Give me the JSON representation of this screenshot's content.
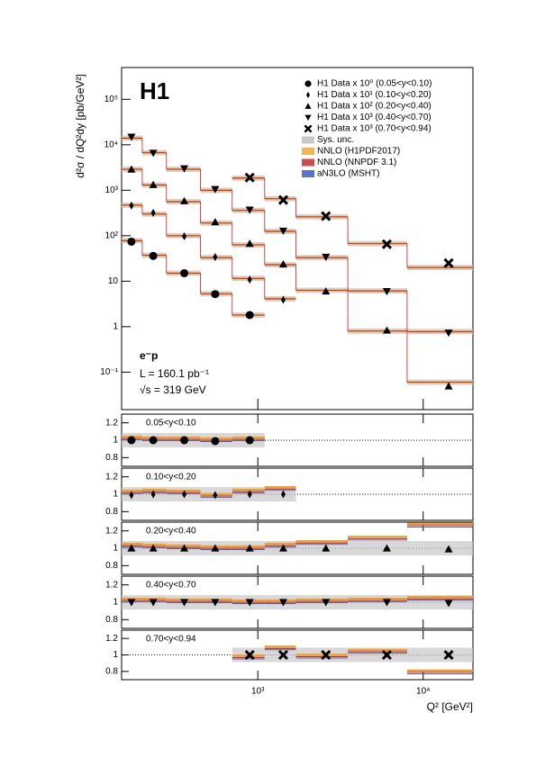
{
  "chart_data": {
    "type": "step",
    "title": "H1",
    "ylabel": "d²σ / dQ²dy [pb/GeV²]",
    "xlabel": "Q² [GeV²]",
    "annotations": [
      "e⁻p",
      "L = 160.1 pb⁻¹",
      "√s = 319 GeV"
    ],
    "log_x": true,
    "log_y": true,
    "xlim": [
      150,
      20000
    ],
    "xticks": [
      {
        "value": 1000,
        "label": "10³"
      },
      {
        "value": 10000,
        "label": "10⁴"
      }
    ],
    "ylim": [
      0.015,
      500000
    ],
    "yticks": [
      {
        "value": 0.1,
        "label": "10⁻¹"
      },
      1,
      10,
      {
        "value": 100,
        "label": "10²"
      },
      {
        "value": 1000,
        "label": "10³"
      },
      {
        "value": 10000,
        "label": "10⁴"
      },
      {
        "value": 100000,
        "label": "10⁵"
      }
    ],
    "ratio_ylim": [
      0.7,
      1.3
    ],
    "ratio_yticks": [
      0.8,
      1,
      1.2
    ],
    "legend": "top-right",
    "legend_extra": [
      {
        "name": "Sys. unc.",
        "color": "#c8c8c8"
      },
      {
        "name": "NNLO (H1PDF2017)",
        "color": "#f0a030"
      },
      {
        "name": "NNLO (NNPDF 3.1)",
        "color": "#c02020"
      },
      {
        "name": "aN3LO (MSHT)",
        "color": "#3050c0"
      }
    ],
    "series": [
      {
        "name": "H1 Data x 10⁰ (0.05<y<0.10)",
        "range_label": "0.05<y<0.10",
        "marker": "circle",
        "color": "#000000",
        "x": [
          172,
          233,
          359,
          552,
          893
        ],
        "values": [
          74,
          36,
          15,
          5.2,
          1.8
        ],
        "bins": [
          150,
          200,
          280,
          450,
          700,
          1100
        ],
        "prediction": [
          78,
          37,
          15,
          5.3,
          1.8
        ],
        "ratio_values": [
          1,
          1,
          1,
          0.99,
          1
        ],
        "ratio_prediction": [
          1.04,
          1.03,
          1.03,
          1.02,
          1.03
        ]
      },
      {
        "name": "H1 Data x 10¹ (0.10<y<0.20)",
        "range_label": "0.10<y<0.20",
        "marker": "diamond",
        "color": "#000000",
        "x": [
          172,
          233,
          359,
          552,
          893,
          1425
        ],
        "values": [
          460,
          320,
          97,
          34,
          10.8,
          3.9
        ],
        "bins": [
          150,
          200,
          280,
          450,
          700,
          1100,
          1700
        ],
        "prediction": [
          470,
          300,
          100,
          33,
          11.5,
          4.1
        ],
        "ratio_values": [
          0.99,
          1,
          1,
          0.99,
          1,
          1
        ],
        "ratio_prediction": [
          1.04,
          1.05,
          1.04,
          1.0,
          1.05,
          1.08
        ]
      },
      {
        "name": "H1 Data x 10² (0.20<y<0.40)",
        "range_label": "0.20<y<0.40",
        "marker": "triangle-up",
        "color": "#000000",
        "x": [
          172,
          233,
          359,
          552,
          893,
          1425,
          2580,
          6030,
          14260
        ],
        "values": [
          2880,
          1320,
          580,
          200,
          67,
          23.6,
          6.0,
          0.83,
          0.049
        ],
        "bins": [
          150,
          200,
          280,
          450,
          700,
          1100,
          1700,
          3500,
          8000,
          20000
        ],
        "prediction": [
          2900,
          1300,
          560,
          190,
          63,
          23,
          6.3,
          0.8,
          0.06
        ],
        "ratio_values": [
          1,
          1,
          1,
          1,
          1,
          1,
          1,
          1,
          0.99
        ],
        "ratio_prediction": [
          1.05,
          1.04,
          1.03,
          1.02,
          1.02,
          1.05,
          1.08,
          1.13,
          1.28
        ]
      },
      {
        "name": "H1 Data x 10³ (0.40<y<0.70)",
        "range_label": "0.40<y<0.70",
        "marker": "triangle-down",
        "color": "#000000",
        "x": [
          172,
          233,
          359,
          552,
          893,
          1425,
          2580,
          6030,
          14260
        ],
        "values": [
          14900,
          6600,
          3000,
          1050,
          370,
          128,
          34,
          6.0,
          0.73
        ],
        "bins": [
          150,
          200,
          280,
          450,
          700,
          1100,
          1700,
          3500,
          8000,
          20000
        ],
        "prediction": [
          14000,
          6700,
          2900,
          1000,
          360,
          125,
          33,
          6.1,
          0.78
        ],
        "ratio_values": [
          1,
          1,
          1,
          1,
          1,
          1,
          1,
          1,
          0.99
        ],
        "ratio_prediction": [
          1.04,
          1.04,
          1.03,
          1.03,
          1.02,
          1.02,
          1.03,
          1.04,
          1.06
        ]
      },
      {
        "name": "H1 Data x 10³ (0.70<y<0.94)",
        "range_label": "0.70<y<0.94",
        "marker": "cross",
        "color": "#000000",
        "x": [
          893,
          1425,
          2580,
          6030,
          14260
        ],
        "values": [
          1900,
          610,
          270,
          65,
          25
        ],
        "bins": [
          700,
          1100,
          1700,
          3500,
          8000,
          20000
        ],
        "prediction": [
          1850,
          650,
          260,
          67,
          20
        ],
        "ratio_values": [
          1,
          1,
          1,
          1,
          1
        ],
        "ratio_prediction": [
          0.99,
          1.1,
          1.0,
          1.06,
          0.81
        ]
      }
    ]
  }
}
